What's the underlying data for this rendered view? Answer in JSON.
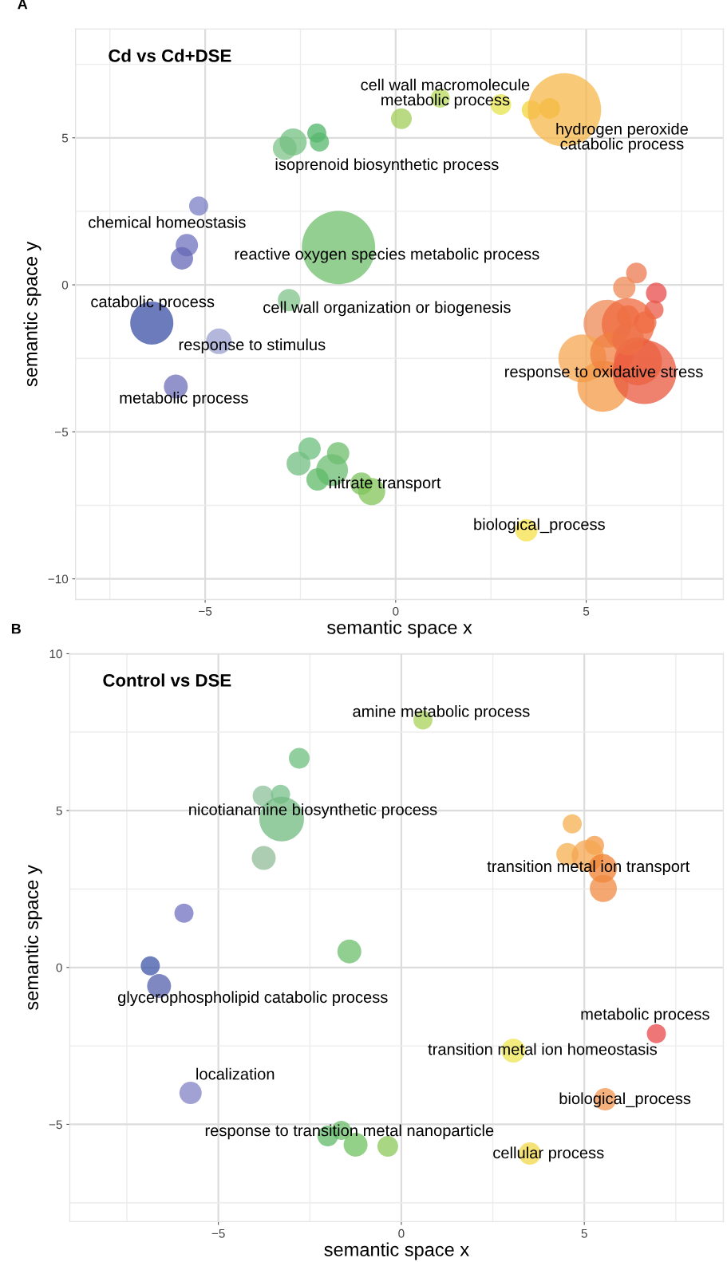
{
  "chart_data": [
    {
      "type": "bubble",
      "title": "Cd vs Cd+DSE",
      "xlabel": "semantic space x",
      "ylabel": "semantic space y",
      "xlim": [
        -8.4,
        8.6
      ],
      "ylim": [
        -10.7,
        8.7
      ],
      "xticks": [
        -5,
        0,
        5
      ],
      "yticks": [
        -10,
        -5,
        0,
        5
      ],
      "grid": true,
      "legend": false,
      "marker": "circle",
      "annotations": [
        "A",
        "cell wall macromolecule\nmetabolic process",
        "hydrogen peroxide\ncatabolic process",
        "isoprenoid biosynthetic process",
        "chemical homeostasis",
        "reactive oxygen species metabolic process",
        "catabolic process",
        "cell wall organization or biogenesis",
        "response to stimulus",
        "response to oxidative stress",
        "metabolic process",
        "nitrate transport",
        "biological_process"
      ],
      "series": [
        {
          "x": [
            -5.17,
            -5.48,
            -5.61,
            -6.4,
            -4.64,
            -5.77,
            -2.91,
            -2.69,
            -2.07,
            -2.0,
            0.15,
            1.17,
            2.76,
            3.56,
            4.04,
            4.43,
            -1.5,
            -2.8,
            -2.26,
            -2.55,
            -1.51,
            -1.67,
            -2.05,
            -0.9,
            -0.63,
            3.43,
            6.32,
            6.0,
            6.84,
            6.78,
            6.1,
            6.55,
            5.56,
            6.1,
            4.9,
            5.44,
            5.67,
            6.53,
            6.36,
            6.1
          ],
          "values": [
            2.68,
            1.35,
            0.9,
            -1.3,
            -1.92,
            -3.46,
            4.65,
            4.86,
            5.16,
            4.86,
            5.65,
            6.35,
            6.13,
            5.95,
            6.0,
            5.95,
            1.27,
            -0.52,
            -5.57,
            -6.08,
            -5.73,
            -6.3,
            -6.62,
            -6.76,
            -7.03,
            -8.35,
            0.4,
            -0.1,
            -0.28,
            -0.85,
            -1.08,
            -1.28,
            -1.32,
            -1.35,
            -2.5,
            -3.45,
            -2.35,
            -2.97,
            -2.6,
            -1.86
          ],
          "sizes": [
            0.068,
            0.093,
            0.093,
            0.345,
            0.121,
            0.106,
            0.106,
            0.137,
            0.068,
            0.068,
            0.08,
            0.068,
            0.08,
            0.068,
            0.08,
            1,
            1,
            0.093,
            0.093,
            0.106,
            0.093,
            0.189,
            0.093,
            0.093,
            0.137,
            0.093,
            0.08,
            0.093,
            0.08,
            0.068,
            0.093,
            0.093,
            0.425,
            0.515,
            0.425,
            0.484,
            0.345,
            0.756,
            0.425,
            0.189
          ],
          "colors": [
            "#7b7fc4",
            "#6f72bd",
            "#6468b6",
            "#3b4fa5",
            "#9a9fd0",
            "#6e6fb9",
            "#7fc48a",
            "#74c082",
            "#4fb56a",
            "#55b76c",
            "#a1cc5a",
            "#b7d95c",
            "#e6e44e",
            "#f2d53a",
            "#f5c02c",
            "#f5b84a",
            "#6dbf6b",
            "#7fc48a",
            "#6cbf7f",
            "#72bf82",
            "#6dbd6b",
            "#6cbd72",
            "#5fb968",
            "#7cc35e",
            "#82c45a",
            "#f5e04a",
            "#ee7a50",
            "#ef8a55",
            "#e84a4a",
            "#e85a48",
            "#ef7048",
            "#ec6845",
            "#ef8a55",
            "#ef6a3f",
            "#f5a550",
            "#f39a45",
            "#f08040",
            "#e8583e",
            "#ec6040",
            "#ee7045"
          ]
        }
      ]
    },
    {
      "type": "bubble",
      "title": "Control vs DSE",
      "xlabel": "semantic space x",
      "ylabel": "semantic space y",
      "xlim": [
        -9.06,
        8.8
      ],
      "ylim": [
        -8.1,
        10
      ],
      "xticks": [
        -5,
        0,
        5
      ],
      "yticks": [
        -5,
        0,
        5,
        10
      ],
      "grid": true,
      "legend": false,
      "marker": "circle",
      "annotations": [
        "B",
        "amine metabolic process",
        "nicotianamine biosynthetic process",
        "transition metal ion transport",
        "glycerophospholipid catabolic process",
        "metabolic process",
        "transition metal ion homeostasis",
        "localization",
        "biological_process",
        "response to transition metal nanoparticle",
        "cellular process"
      ],
      "series": [
        {
          "x": [
            0.59,
            -2.79,
            -3.78,
            -3.3,
            -3.27,
            -3.76,
            -5.94,
            -1.42,
            -6.86,
            -6.62,
            6.97,
            3.06,
            -5.76,
            5.57,
            -1.64,
            -2.01,
            -1.25,
            -0.37,
            3.51,
            4.67,
            5.28,
            4.54,
            5.09,
            5.5,
            5.52
          ],
          "values": [
            7.89,
            6.67,
            5.47,
            5.52,
            4.73,
            3.49,
            1.73,
            0.51,
            0.05,
            -0.59,
            -2.11,
            -2.65,
            -4.0,
            -4.2,
            -5.19,
            -5.37,
            -5.65,
            -5.7,
            -5.93,
            4.58,
            3.89,
            3.61,
            3.56,
            3.16,
            2.52
          ],
          "sizes": [
            0.184,
            0.216,
            0.216,
            0.184,
            1,
            0.287,
            0.184,
            0.287,
            0.184,
            0.287,
            0.184,
            0.287,
            0.25,
            0.25,
            0.184,
            0.216,
            0.287,
            0.216,
            0.25,
            0.184,
            0.184,
            0.25,
            0.51,
            0.413,
            0.369
          ],
          "colors": [
            "#a9d15a",
            "#6cbf7f",
            "#8cc09a",
            "#78c08a",
            "#70bb80",
            "#90bc98",
            "#7072c0",
            "#6cbf6c",
            "#3d55a8",
            "#5560ad",
            "#e84848",
            "#ece552",
            "#8282c4",
            "#f39550",
            "#6cbf6c",
            "#5fb968",
            "#6fc060",
            "#8cc85a",
            "#f2d848",
            "#f5b050",
            "#f39a45",
            "#f5b050",
            "#f5a550",
            "#f08030",
            "#f08a40"
          ]
        }
      ]
    }
  ]
}
